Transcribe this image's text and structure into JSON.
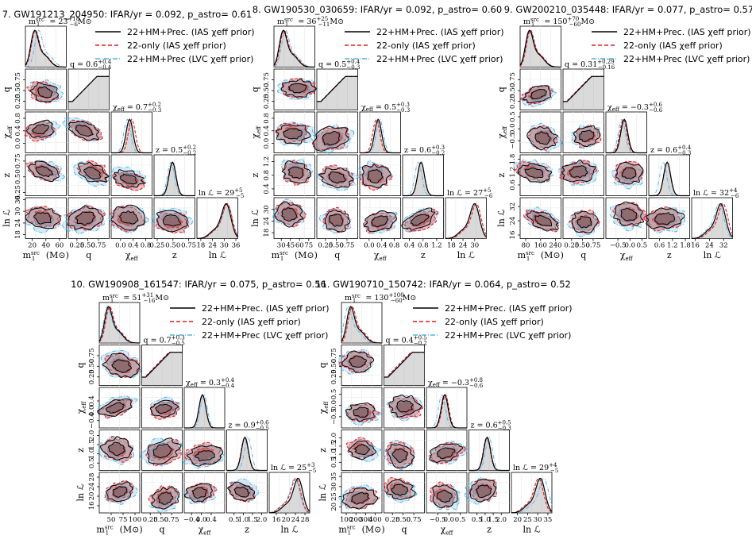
{
  "chart_data": {
    "type": "corner",
    "variables": [
      "m1_src",
      "q",
      "chi_eff",
      "z",
      "lnL"
    ],
    "axis_labels": {
      "m1_src": {
        "base": "m",
        "sub": "1",
        "sup": "src",
        "unit": "(M⊙)"
      },
      "q": {
        "text": "q"
      },
      "chi_eff": {
        "base": "χ",
        "sub": "eff"
      },
      "z": {
        "text": "z"
      },
      "lnL": {
        "text": "ln ℒ"
      }
    },
    "legend": [
      {
        "label": "22+HM+Prec. (IAS χeff prior)",
        "color": "#000000",
        "dash": "solid"
      },
      {
        "label": "22-only (IAS χeff prior)",
        "color": "#e31a1c",
        "dash": "dashed"
      },
      {
        "label": "22+HM+Prec (LVC χeff prior)",
        "color": "#56b4e9",
        "dash": "dashdot"
      }
    ],
    "panels": [
      {
        "title": "7.  GW191213_204950:  IFAR/yr = 0.092,  p_astro= 0.61",
        "stats": {
          "m1_src": {
            "median": "23",
            "plus": "+18",
            "minus": "−6",
            "unit": "M⊙"
          },
          "q": {
            "median": "0.6",
            "plus": "+0.4",
            "minus": "−0.4"
          },
          "chi_eff": {
            "median": "0.7",
            "plus": "+0.2",
            "minus": "−0.3"
          },
          "z": {
            "median": "0.5",
            "plus": "+0.2",
            "minus": "−0.2"
          },
          "lnL": {
            "median": "29",
            "plus": "+5",
            "minus": "−5"
          }
        },
        "ranges": {
          "m1_src": [
            10,
            70
          ],
          "q": [
            0.05,
            1.0
          ],
          "chi_eff": [
            -0.3,
            1.0
          ],
          "z": [
            0.2,
            0.85
          ],
          "lnL": [
            16,
            37
          ]
        },
        "ticks": {
          "m1_src": [
            20,
            40,
            60
          ],
          "q": [
            0.25,
            0.5,
            0.75
          ],
          "chi_eff": [
            0.0,
            0.4,
            0.8
          ],
          "z": [
            0.25,
            0.5,
            0.75
          ],
          "lnL": [
            18,
            24,
            30,
            36
          ]
        },
        "tick_labels": {
          "m1_src": [
            "20",
            "40",
            "60"
          ],
          "q": [
            "0.25",
            "0.50",
            "0.75"
          ],
          "chi_eff": [
            "0.0",
            "0.4",
            "0.8"
          ],
          "z": [
            "0.25",
            "0.50",
            "0.75"
          ],
          "lnL": [
            "18",
            "24",
            "30",
            "36"
          ]
        },
        "show_legend": true
      },
      {
        "title": "8.  GW190530_030659:  IFAR/yr = 0.092,  p_astro= 0.60",
        "stats": {
          "m1_src": {
            "median": "36",
            "plus": "+25",
            "minus": "−11",
            "unit": "M⊙"
          },
          "q": {
            "median": "0.5",
            "plus": "+0.4",
            "minus": "−0.3"
          },
          "chi_eff": {
            "median": "0.5",
            "plus": "+0.3",
            "minus": "−0.3"
          },
          "z": {
            "median": "0.6",
            "plus": "+0.3",
            "minus": "−0.2"
          },
          "lnL": {
            "median": "27",
            "plus": "+5",
            "minus": "−6"
          }
        },
        "ranges": {
          "m1_src": [
            18,
            85
          ],
          "q": [
            0.05,
            1.0
          ],
          "chi_eff": [
            -0.3,
            1.0
          ],
          "z": [
            0.2,
            1.4
          ],
          "lnL": [
            15,
            36
          ]
        },
        "ticks": {
          "m1_src": [
            30,
            45,
            60,
            75
          ],
          "q": [
            0.25,
            0.5,
            0.75
          ],
          "chi_eff": [
            0.0,
            0.4,
            0.8
          ],
          "z": [
            0.4,
            0.8,
            1.2
          ],
          "lnL": [
            18,
            24,
            30
          ]
        },
        "tick_labels": {
          "m1_src": [
            "30",
            "45",
            "60",
            "75"
          ],
          "q": [
            "0.25",
            "0.50",
            "0.75"
          ],
          "chi_eff": [
            "0.0",
            "0.4",
            "0.8"
          ],
          "z": [
            "0.4",
            "0.8",
            "1.2"
          ],
          "lnL": [
            "18",
            "24",
            "30"
          ]
        },
        "show_legend": true
      },
      {
        "title": "9.  GW200210_035448:  IFAR/yr = 0.077,  p_astro= 0.57",
        "stats": {
          "m1_src": {
            "median": "150",
            "plus": "+70",
            "minus": "−60",
            "unit": "M⊙"
          },
          "q": {
            "median": "0.31",
            "plus": "+0.29",
            "minus": "−0.16"
          },
          "chi_eff": {
            "median": "−0.3",
            "plus": "+0.6",
            "minus": "−0.6"
          },
          "z": {
            "median": "0.6",
            "plus": "+0.4",
            "minus": "−0.3"
          },
          "lnL": {
            "median": "32",
            "plus": "+4",
            "minus": "−6"
          }
        },
        "ranges": {
          "m1_src": [
            50,
            270
          ],
          "q": [
            0.05,
            1.0
          ],
          "chi_eff": [
            -1.0,
            0.7
          ],
          "z": [
            0.1,
            2.0
          ],
          "lnL": [
            14,
            37
          ]
        },
        "ticks": {
          "m1_src": [
            80,
            160,
            240
          ],
          "q": [
            0.25,
            0.5,
            0.75
          ],
          "chi_eff": [
            -0.5,
            0.0,
            0.5
          ],
          "z": [
            0.6,
            1.2,
            1.8
          ],
          "lnL": [
            16,
            24,
            32
          ]
        },
        "tick_labels": {
          "m1_src": [
            "80",
            "160",
            "240"
          ],
          "q": [
            "0.25",
            "0.50",
            "0.75"
          ],
          "chi_eff": [
            "−0.5",
            "0.0",
            "0.5"
          ],
          "z": [
            "0.6",
            "1.2",
            "1.8"
          ],
          "lnL": [
            "16",
            "24",
            "32"
          ]
        },
        "show_legend": true
      },
      {
        "title": "10.  GW190908_161547:  IFAR/yr = 0.075,  p_astro= 0.56",
        "stats": {
          "m1_src": {
            "median": "51",
            "plus": "+31",
            "minus": "−16",
            "unit": "M⊙"
          },
          "q": {
            "median": "0.7",
            "plus": "+0.3",
            "minus": "−0.5"
          },
          "chi_eff": {
            "median": "0.3",
            "plus": "+0.4",
            "minus": "−0.4"
          },
          "z": {
            "median": "0.9",
            "plus": "+0.6",
            "minus": "−0.5"
          },
          "lnL": {
            "median": "25",
            "plus": "+3",
            "minus": "−5"
          }
        },
        "ranges": {
          "m1_src": [
            25,
            110
          ],
          "q": [
            0.05,
            1.0
          ],
          "chi_eff": [
            -0.7,
            0.95
          ],
          "z": [
            0.1,
            2.3
          ],
          "lnL": [
            13,
            30
          ]
        },
        "ticks": {
          "m1_src": [
            50,
            75,
            100
          ],
          "q": [
            0.25,
            0.5,
            0.75
          ],
          "chi_eff": [
            -0.4,
            0.0,
            0.4
          ],
          "z": [
            0.5,
            1.0,
            1.5,
            2.0
          ],
          "lnL": [
            16,
            20,
            24,
            28
          ]
        },
        "tick_labels": {
          "m1_src": [
            "50",
            "75",
            "100"
          ],
          "q": [
            "0.25",
            "0.50",
            "0.75"
          ],
          "chi_eff": [
            "−0.4",
            "0.0",
            "0.4"
          ],
          "z": [
            "0.5",
            "1.0",
            "1.5",
            "2.0"
          ],
          "lnL": [
            "16",
            "20",
            "24",
            "28"
          ]
        },
        "show_legend": true
      },
      {
        "title": "11.  GW190710_150742:  IFAR/yr = 0.064,  p_astro= 0.52",
        "stats": {
          "m1_src": {
            "median": "130",
            "plus": "+100",
            "minus": "−60",
            "unit": "M⊙"
          },
          "q": {
            "median": "0.4",
            "plus": "+0.5",
            "minus": "−0.2"
          },
          "chi_eff": {
            "median": "−0.3",
            "plus": "+0.8",
            "minus": "−0.6"
          },
          "z": {
            "median": "0.6",
            "plus": "+0.5",
            "minus": "−0.3"
          },
          "lnL": {
            "median": "29",
            "plus": "+4",
            "minus": "−5"
          }
        },
        "ranges": {
          "m1_src": [
            50,
            470
          ],
          "q": [
            0.05,
            1.0
          ],
          "chi_eff": [
            -1.0,
            0.8
          ],
          "z": [
            0.0,
            2.5
          ],
          "lnL": [
            17,
            37
          ]
        },
        "ticks": {
          "m1_src": [
            100,
            200,
            300,
            400
          ],
          "q": [
            0.25,
            0.5,
            0.75
          ],
          "chi_eff": [
            -0.5,
            0.0,
            0.5
          ],
          "z": [
            0.5,
            1.0,
            1.5,
            2.0
          ],
          "lnL": [
            20,
            25,
            30,
            35
          ]
        },
        "tick_labels": {
          "m1_src": [
            "100",
            "200",
            "300",
            "400"
          ],
          "q": [
            "0.25",
            "0.50",
            "0.75"
          ],
          "chi_eff": [
            "−0.5",
            "0.0",
            "0.5"
          ],
          "z": [
            "0.5",
            "1.0",
            "1.5",
            "2.0"
          ],
          "lnL": [
            "20",
            "25",
            "30",
            "35"
          ]
        },
        "show_legend": true
      }
    ]
  }
}
